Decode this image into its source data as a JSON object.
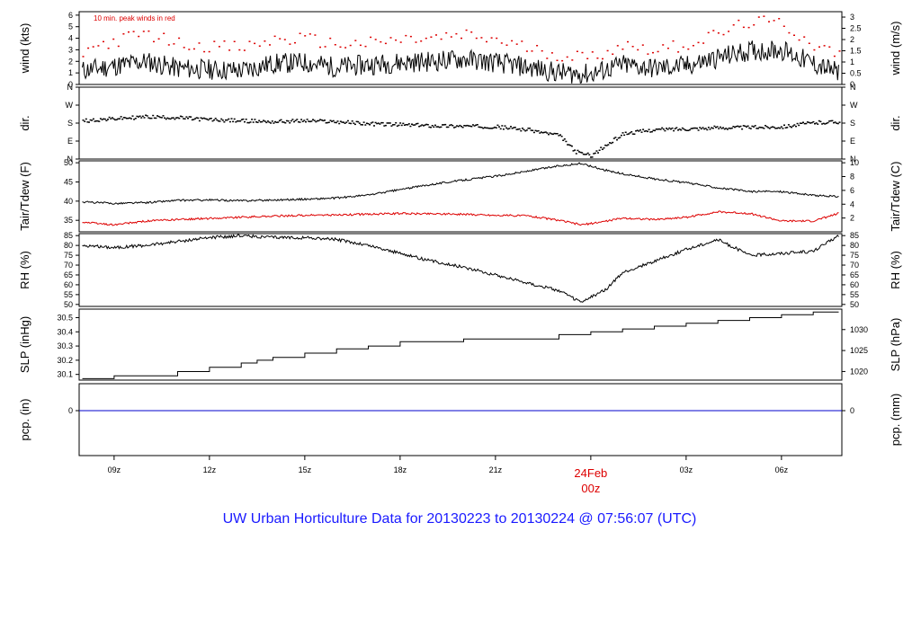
{
  "chart_data": {
    "type": "line",
    "title": "UW Urban Horticulture Data for 20130223  to  20130224 @ 07:56:07  (UTC)",
    "note": "10 min. peak winds in red",
    "x_tick_labels": [
      "09z",
      "12z",
      "15z",
      "18z",
      "21z",
      "03z",
      "06z"
    ],
    "midnight_label": [
      "24Feb",
      "00z"
    ],
    "x_range_hours": [
      7.9,
      31.9
    ],
    "panels": [
      {
        "name": "wind",
        "ylabel_left": "wind (kts)",
        "ylabel_right": "wind (m/s)",
        "ylim": [
          0,
          6.3
        ],
        "left_ticks": [
          "0",
          "1",
          "2",
          "3",
          "4",
          "5",
          "6"
        ],
        "right_ticks": [
          "0",
          "0.5",
          "1",
          "1.5",
          "2",
          "2.5",
          "3"
        ],
        "series": [
          {
            "name": "",
            "color": "#000000",
            "style": "line",
            "x": [
              8,
              9,
              10,
              11,
              12,
              13,
              14,
              15,
              16,
              17,
              18,
              19,
              20,
              21,
              22,
              23,
              24,
              25,
              26,
              27,
              28,
              29,
              30,
              31,
              31.8
            ],
            "y": [
              1.2,
              1.6,
              2.0,
              1.4,
              1.3,
              1.2,
              1.8,
              1.9,
              1.5,
              1.7,
              1.9,
              2.0,
              2.2,
              1.9,
              1.5,
              1.0,
              0.9,
              1.7,
              1.4,
              1.6,
              2.3,
              2.9,
              3.0,
              1.8,
              1.0
            ]
          },
          {
            "name": "10 min. peak winds",
            "color": "#dd0000",
            "style": "points",
            "x": [
              8,
              9,
              10,
              11,
              12,
              13,
              14,
              15,
              16,
              17,
              18,
              19,
              20,
              21,
              22,
              23,
              24,
              25,
              26,
              27,
              28,
              29,
              30,
              31,
              31.8
            ],
            "y": [
              3.0,
              3.8,
              4.5,
              3.6,
              3.4,
              3.2,
              3.9,
              4.0,
              3.5,
              3.6,
              3.9,
              4.0,
              4.3,
              3.9,
              3.2,
              2.6,
              2.4,
              3.5,
              3.1,
              3.5,
              4.4,
              5.5,
              5.3,
              3.5,
              2.6
            ]
          }
        ]
      },
      {
        "name": "dir",
        "ylabel_left": "dir.",
        "ylabel_right": "dir.",
        "ylim": [
          0,
          360
        ],
        "left_ticks": [
          "N",
          "E",
          "S",
          "W",
          "N"
        ],
        "right_ticks": [
          "N",
          "E",
          "S",
          "W",
          "N"
        ],
        "series": [
          {
            "name": "",
            "color": "#000000",
            "style": "points",
            "x": [
              8,
              9,
              10,
              11,
              12,
              13,
              14,
              15,
              16,
              17,
              18,
              19,
              20,
              21,
              22,
              23,
              23.5,
              24,
              25,
              26,
              27,
              28,
              29,
              30,
              31,
              31.8
            ],
            "y": [
              195,
              205,
              215,
              210,
              200,
              195,
              190,
              195,
              190,
              180,
              175,
              170,
              168,
              165,
              150,
              120,
              40,
              20,
              130,
              150,
              155,
              160,
              162,
              165,
              185,
              190
            ]
          }
        ]
      },
      {
        "name": "temp",
        "ylabel_left": "Tair/Tdew (F)",
        "ylabel_right": "Tair/Tdew (C)",
        "ylim": [
          32,
          50.5
        ],
        "left_ticks": [
          "35",
          "40",
          "45",
          "50"
        ],
        "right_ticks": [
          "2",
          "4",
          "6",
          "8",
          "10"
        ],
        "series": [
          {
            "name": "Tair",
            "color": "#000000",
            "style": "line",
            "x": [
              8,
              9,
              10,
              11,
              12,
              13,
              14,
              15,
              16,
              17,
              18,
              19,
              20,
              21,
              22,
              23,
              23.7,
              24.5,
              25,
              26,
              27,
              28,
              29,
              30,
              31,
              31.8
            ],
            "y": [
              39.8,
              39.4,
              39.6,
              40.2,
              40.3,
              40.1,
              40.3,
              40.5,
              40.8,
              41.6,
              43.0,
              44.4,
              45.5,
              46.5,
              47.8,
              49.2,
              49.8,
              48.0,
              47.1,
              45.8,
              44.8,
              43.5,
              42.5,
              42.5,
              41.5,
              41.2
            ]
          },
          {
            "name": "Tdew",
            "color": "#dd0000",
            "style": "line",
            "x": [
              8,
              9,
              10,
              11,
              12,
              13,
              14,
              15,
              16,
              17,
              18,
              19,
              20,
              21,
              22,
              23,
              23.7,
              24.5,
              25,
              26,
              27,
              28,
              29,
              30,
              31,
              31.8
            ],
            "y": [
              34.5,
              33.8,
              34.8,
              35.2,
              35.5,
              35.8,
              36.1,
              36.3,
              36.4,
              36.6,
              36.8,
              36.7,
              36.6,
              36.3,
              36.2,
              35.0,
              33.8,
              34.8,
              35.6,
              35.2,
              35.8,
              37.2,
              36.8,
              34.8,
              34.8,
              36.8
            ]
          }
        ]
      },
      {
        "name": "rh",
        "ylabel_left": "RH (%)",
        "ylabel_right": "RH (%)",
        "ylim": [
          49,
          86
        ],
        "left_ticks": [
          "50",
          "55",
          "60",
          "65",
          "70",
          "75",
          "80",
          "85"
        ],
        "right_ticks": [
          "50",
          "55",
          "60",
          "65",
          "70",
          "75",
          "80",
          "85"
        ],
        "series": [
          {
            "name": "",
            "color": "#000000",
            "style": "line",
            "x": [
              8,
              9,
              10,
              11,
              12,
              13,
              14,
              15,
              16,
              17,
              18,
              19,
              20,
              21,
              22,
              23,
              23.7,
              24.5,
              25,
              26,
              27,
              28,
              29,
              30,
              31,
              31.8
            ],
            "y": [
              80,
              79,
              80,
              82,
              84,
              85,
              84,
              84,
              83,
              80,
              76,
              72,
              69,
              65,
              61,
              57,
              51,
              58,
              66,
              72,
              78,
              83,
              75,
              76,
              77,
              85
            ]
          }
        ]
      },
      {
        "name": "slp",
        "ylabel_left": "SLP (inHg)",
        "ylabel_right": "SLP (hPa)",
        "ylim": [
          30.06,
          30.56
        ],
        "left_ticks": [
          "30.1",
          "30.2",
          "30.3",
          "30.4",
          "30.5"
        ],
        "right_ticks": [
          "1020",
          "1025",
          "1030"
        ],
        "series": [
          {
            "name": "",
            "color": "#000000",
            "style": "step",
            "x": [
              8,
              9,
              11,
              12,
              13,
              13.5,
              14,
              15,
              16,
              17,
              18,
              20,
              23,
              24,
              25,
              26,
              27,
              28,
              29,
              30,
              31,
              31.8
            ],
            "y": [
              30.07,
              30.09,
              30.12,
              30.15,
              30.18,
              30.2,
              30.22,
              30.25,
              30.28,
              30.3,
              30.33,
              30.35,
              30.38,
              30.4,
              30.42,
              30.44,
              30.46,
              30.48,
              30.5,
              30.52,
              30.54,
              30.54
            ]
          }
        ]
      },
      {
        "name": "pcp",
        "ylabel_left": "pcp. (in)",
        "ylabel_right": "pcp. (mm)",
        "ylim": [
          -0.1,
          0.06
        ],
        "left_ticks": [
          "0"
        ],
        "right_ticks": [
          "0"
        ],
        "series": [
          {
            "name": "",
            "color": "#0000cc",
            "style": "line",
            "x": [
              7.9,
              31.9
            ],
            "y": [
              0,
              0
            ]
          }
        ]
      }
    ],
    "colors": {
      "caption": "#1a1aff",
      "midnight": "#dd0000",
      "note": "#dd0000",
      "pcp": "#0000cc"
    }
  }
}
